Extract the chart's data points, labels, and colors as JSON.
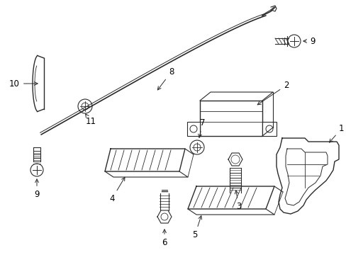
{
  "background_color": "#ffffff",
  "line_color": "#2a2a2a",
  "text_color": "#000000",
  "label_fontsize": 8.5,
  "fig_width": 4.89,
  "fig_height": 3.6,
  "dpi": 100
}
